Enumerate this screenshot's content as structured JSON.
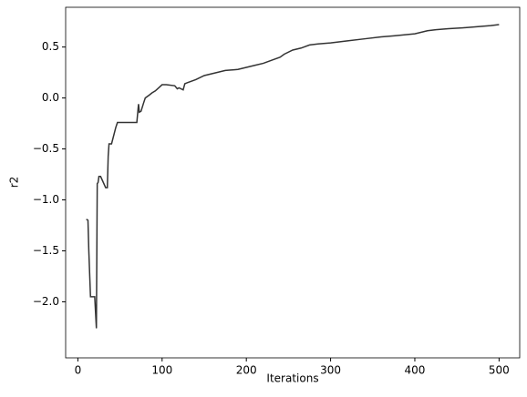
{
  "chart_data": {
    "type": "line",
    "xlabel": "Iterations",
    "ylabel": "r2",
    "x": [
      10,
      12,
      13,
      15,
      20,
      22,
      23,
      24,
      25,
      27,
      33,
      35,
      36,
      37,
      40,
      45,
      47,
      55,
      70,
      72,
      73,
      75,
      78,
      80,
      85,
      88,
      92,
      100,
      105,
      115,
      118,
      120,
      125,
      127,
      130,
      140,
      150,
      160,
      175,
      190,
      200,
      210,
      220,
      230,
      240,
      245,
      255,
      265,
      275,
      285,
      300,
      320,
      340,
      360,
      375,
      400,
      415,
      425,
      440,
      460,
      475,
      490,
      500
    ],
    "values": [
      -1.19,
      -1.2,
      -1.5,
      -1.95,
      -1.95,
      -2.26,
      -0.84,
      -0.83,
      -0.77,
      -0.77,
      -0.88,
      -0.88,
      -0.57,
      -0.45,
      -0.45,
      -0.29,
      -0.24,
      -0.24,
      -0.24,
      -0.06,
      -0.14,
      -0.13,
      -0.05,
      0.0,
      0.03,
      0.05,
      0.07,
      0.13,
      0.13,
      0.12,
      0.09,
      0.1,
      0.08,
      0.14,
      0.15,
      0.18,
      0.22,
      0.24,
      0.27,
      0.28,
      0.3,
      0.32,
      0.34,
      0.37,
      0.4,
      0.43,
      0.47,
      0.49,
      0.52,
      0.53,
      0.54,
      0.56,
      0.58,
      0.6,
      0.61,
      0.63,
      0.66,
      0.67,
      0.68,
      0.69,
      0.7,
      0.71,
      0.72
    ],
    "color": "#333333",
    "xlim": [
      -14.5,
      524.5
    ],
    "ylim": [
      -2.55,
      0.89
    ],
    "xticks": [
      0,
      100,
      200,
      300,
      400,
      500
    ],
    "yticks": [
      {
        "value": -2.0,
        "label": "−2.0"
      },
      {
        "value": -1.5,
        "label": "−1.5"
      },
      {
        "value": -1.0,
        "label": "−1.0"
      },
      {
        "value": -0.5,
        "label": "−0.5"
      },
      {
        "value": 0.0,
        "label": "0.0"
      },
      0.5
    ]
  }
}
